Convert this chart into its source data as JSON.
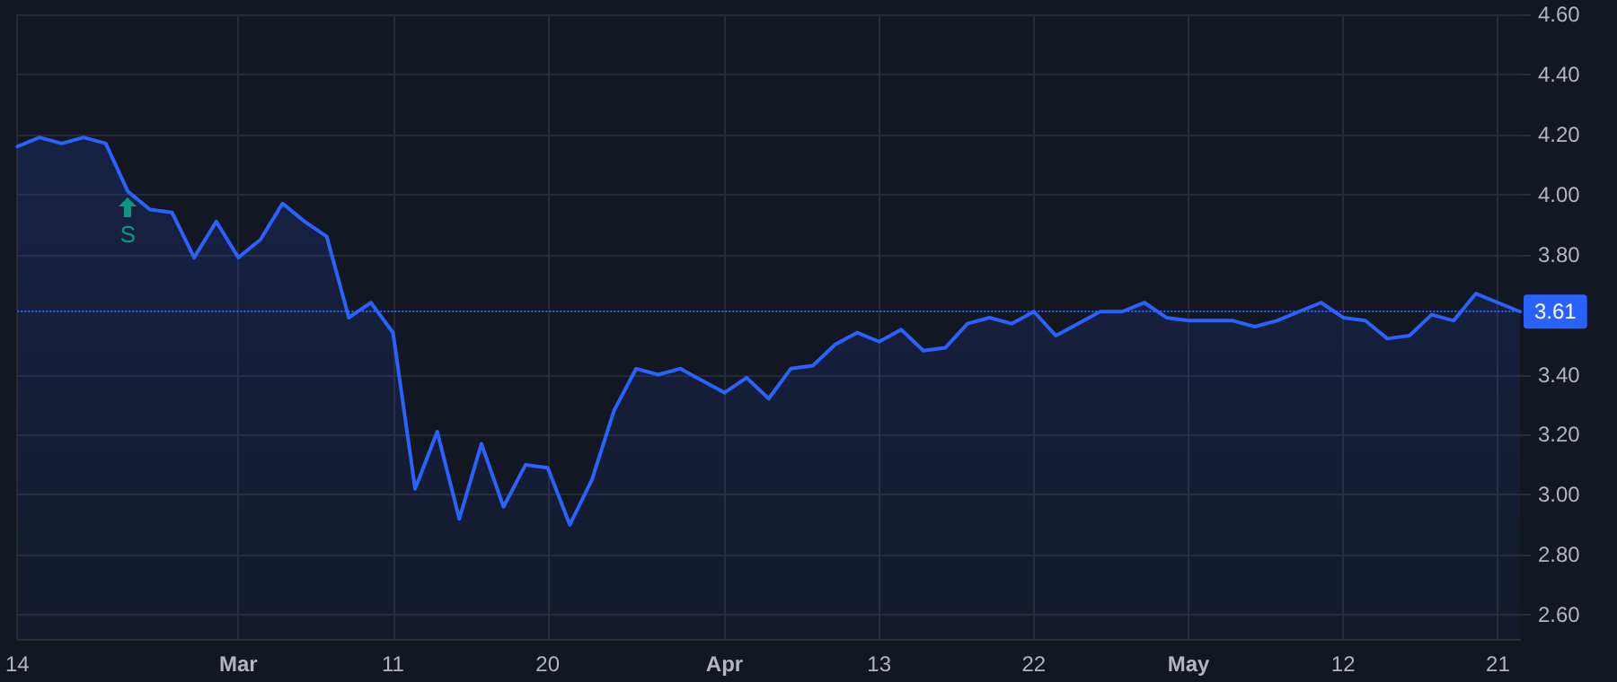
{
  "chart_data": {
    "type": "area",
    "categories": [
      "14",
      null,
      null,
      null,
      null,
      null,
      null,
      null,
      null,
      null,
      "Mar",
      null,
      null,
      null,
      null,
      null,
      null,
      "11",
      null,
      null,
      null,
      null,
      null,
      null,
      "20",
      null,
      null,
      null,
      null,
      null,
      null,
      null,
      "Apr",
      null,
      null,
      null,
      null,
      null,
      null,
      "13",
      null,
      null,
      null,
      null,
      null,
      null,
      "22",
      null,
      null,
      null,
      null,
      null,
      null,
      "May",
      null,
      null,
      null,
      null,
      null,
      null,
      "12",
      null,
      null,
      null,
      null,
      null,
      null,
      "21",
      null
    ],
    "series": [
      {
        "color": "#2962ff",
        "values": [
          4.16,
          4.19,
          4.17,
          4.19,
          4.17,
          4.01,
          3.95,
          3.94,
          3.79,
          3.91,
          3.79,
          3.85,
          3.97,
          3.91,
          3.86,
          3.59,
          3.64,
          3.54,
          3.02,
          3.21,
          2.92,
          3.17,
          2.96,
          3.1,
          3.09,
          2.9,
          3.05,
          3.28,
          3.42,
          3.4,
          3.42,
          3.38,
          3.34,
          3.39,
          3.32,
          3.42,
          3.43,
          3.5,
          3.54,
          3.51,
          3.55,
          3.48,
          3.49,
          3.57,
          3.59,
          3.57,
          3.61,
          3.53,
          3.57,
          3.61,
          3.61,
          3.64,
          3.59,
          3.58,
          3.58,
          3.58,
          3.56,
          3.58,
          3.61,
          3.64,
          3.59,
          3.58,
          3.52,
          3.53,
          3.6,
          3.58,
          3.67,
          3.64,
          3.61
        ]
      }
    ],
    "ylim": [
      2.52,
      4.6
    ],
    "yticks": [
      {
        "value": 2.6,
        "label": "2.60"
      },
      {
        "value": 2.8,
        "label": "2.80"
      },
      {
        "value": 3.0,
        "label": "3.00"
      },
      {
        "value": 3.2,
        "label": "3.20"
      },
      {
        "value": 3.4,
        "label": "3.40"
      },
      {
        "value": 3.8,
        "label": "3.80"
      },
      {
        "value": 4.0,
        "label": "4.00"
      },
      {
        "value": 4.2,
        "label": "4.20"
      },
      {
        "value": 4.4,
        "label": "4.40"
      },
      {
        "value": 4.6,
        "label": "4.60"
      }
    ],
    "ref_lines": [
      {
        "axis": "y",
        "value": 3.61,
        "label": "3.61",
        "color": "#2962ff",
        "line_style": "dotted"
      }
    ],
    "annotations": [
      {
        "text": "S",
        "y": 4.01
      }
    ],
    "grid": true,
    "marker": "none",
    "line_style": "solid"
  }
}
